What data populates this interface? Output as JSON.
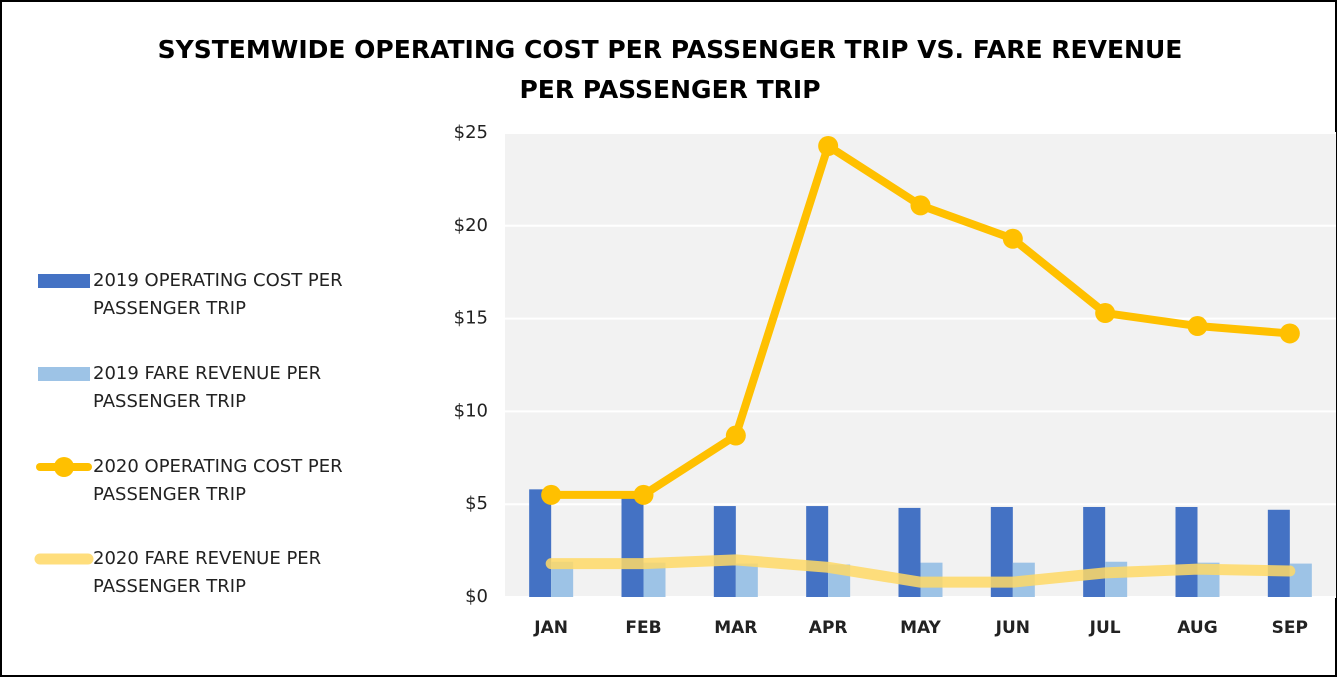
{
  "chart_data": {
    "type": "bar-line",
    "title": "SYSTEMWIDE OPERATING COST PER PASSENGER TRIP VS. FARE REVENUE PER PASSENGER TRIP",
    "categories": [
      "JAN",
      "FEB",
      "MAR",
      "APR",
      "MAY",
      "JUN",
      "JUL",
      "AUG",
      "SEP"
    ],
    "series": [
      {
        "name": "2019 OPERATING COST PER PASSENGER TRIP",
        "kind": "bar",
        "color": "#4472c4",
        "values": [
          5.8,
          5.6,
          4.9,
          4.9,
          4.8,
          4.85,
          4.85,
          4.85,
          4.7
        ]
      },
      {
        "name": "2019 FARE REVENUE PER PASSENGER TRIP",
        "kind": "bar",
        "color": "#9dc3e6",
        "values": [
          1.9,
          1.85,
          1.8,
          1.75,
          1.85,
          1.85,
          1.9,
          1.85,
          1.8
        ]
      },
      {
        "name": "2020 OPERATING COST PER PASSENGER TRIP",
        "kind": "line-markers",
        "color": "#ffc000",
        "values": [
          5.5,
          5.5,
          8.7,
          24.3,
          21.1,
          19.3,
          15.3,
          14.6,
          14.2
        ]
      },
      {
        "name": "2020 FARE REVENUE PER PASSENGER TRIP",
        "kind": "line",
        "color": "#ffd966",
        "values": [
          1.8,
          1.8,
          2.0,
          1.6,
          0.8,
          0.8,
          1.3,
          1.5,
          1.4
        ]
      }
    ],
    "ylim": [
      0,
      25
    ],
    "yticks": [
      {
        "value": 0,
        "label": "$0"
      },
      {
        "value": 5,
        "label": "$5"
      },
      {
        "value": 10,
        "label": "$10"
      },
      {
        "value": 15,
        "label": "$15"
      },
      {
        "value": 20,
        "label": "$20"
      },
      {
        "value": 25,
        "label": "$25"
      }
    ],
    "grid": true,
    "legend": "left"
  }
}
